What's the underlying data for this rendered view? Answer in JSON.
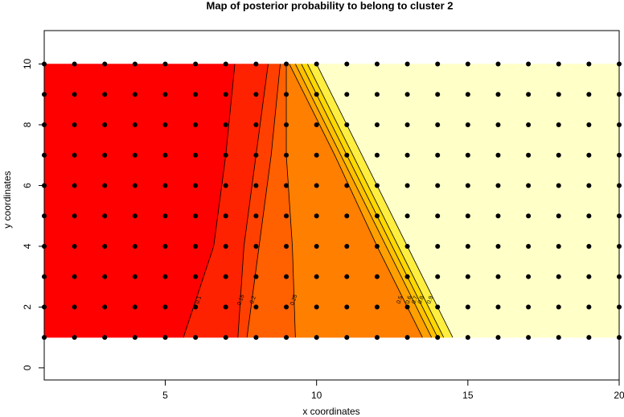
{
  "chart_data": {
    "type": "contour",
    "title": "Map of posterior probability to belong to cluster  2",
    "x_label": "x coordinates",
    "y_label": "y coordinates",
    "xlim": [
      1,
      20
    ],
    "ylim": [
      -0.4,
      11.1
    ],
    "xticks": [
      5,
      10,
      15,
      20
    ],
    "yticks": [
      0,
      2,
      4,
      6,
      8,
      10
    ],
    "image_ylim": [
      1,
      10
    ],
    "band_colors": [
      "#ff0000",
      "#ff2200",
      "#ff4000",
      "#ff6000",
      "#ff7f00",
      "#ffa000",
      "#ffc000",
      "#ffd800",
      "#ffee40",
      "#ffffc8"
    ],
    "contours": [
      {
        "level": 0.1,
        "x": [
          5.6,
          6.6,
          7.0,
          7.3
        ],
        "y": [
          1,
          4,
          7,
          10
        ]
      },
      {
        "level": 0.15,
        "x": [
          7.4,
          7.6,
          8.0,
          8.4
        ],
        "y": [
          1,
          4,
          7,
          10
        ]
      },
      {
        "level": 0.2,
        "x": [
          7.7,
          8.1,
          8.5,
          8.8
        ],
        "y": [
          1,
          4,
          7,
          10
        ]
      },
      {
        "level": 0.25,
        "x": [
          9.3,
          9.2,
          9.0,
          9.0
        ],
        "y": [
          1,
          4,
          7,
          10
        ]
      },
      {
        "level": 0.5,
        "x": [
          13.5,
          12.0,
          10.6,
          9.1
        ],
        "y": [
          1,
          4,
          7,
          10
        ]
      },
      {
        "level": 0.6,
        "x": [
          13.8,
          12.3,
          10.8,
          9.3
        ],
        "y": [
          1,
          4,
          7,
          10
        ]
      },
      {
        "level": 0.7,
        "x": [
          14.0,
          12.5,
          11.0,
          9.5
        ],
        "y": [
          1,
          4,
          7,
          10
        ]
      },
      {
        "level": 0.8,
        "x": [
          14.2,
          12.7,
          11.2,
          9.7
        ],
        "y": [
          1,
          4,
          7,
          10
        ]
      },
      {
        "level": 0.9,
        "x": [
          14.5,
          13.0,
          11.5,
          10.0
        ],
        "y": [
          1,
          4,
          7,
          10
        ]
      }
    ],
    "points": {
      "x": [
        1,
        2,
        3,
        4,
        5,
        6,
        7,
        8,
        9,
        10,
        11,
        12,
        13,
        14,
        15,
        16,
        17,
        18,
        19,
        20
      ],
      "y": [
        1,
        2,
        3,
        4,
        5,
        6,
        7,
        8,
        9,
        10
      ]
    }
  }
}
